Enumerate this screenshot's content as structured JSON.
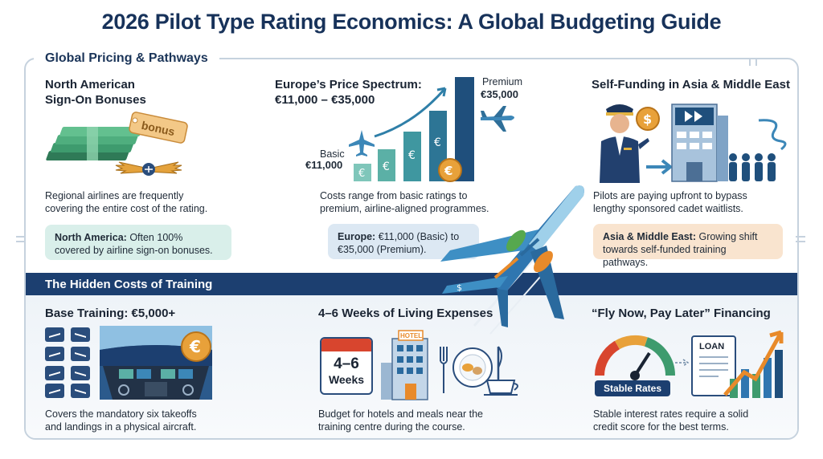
{
  "title": "2026 Pilot Type Rating Economics: A Global Budgeting Guide",
  "section1": {
    "label": "Global Pricing & Pathways",
    "north_america": {
      "heading_line1": "North American",
      "heading_line2": "Sign-On Bonuses",
      "bonus_tag": "bonus",
      "text_line1": "Regional airlines are frequently",
      "text_line2": "covering the entire cost of the rating.",
      "note_bold": "North America:",
      "note_rest1": " Often 100%",
      "note_line2": "covered by airline sign-on bonuses."
    },
    "europe": {
      "heading_line1": "Europe’s Price Spectrum:",
      "heading_line2": "€11,000 – €35,000",
      "basic_label": "Basic",
      "basic_value": "€11,000",
      "premium_label": "Premium",
      "premium_value": "€35,000",
      "text_line1": "Costs range from basic ratings to",
      "text_line2": "premium, airline-aligned programmes.",
      "note_bold": "Europe:",
      "note_rest1": " €11,000 (Basic) to",
      "note_line2": "€35,000 (Premium)."
    },
    "asia": {
      "heading": "Self-Funding in Asia & Middle East",
      "text_line1": "Pilots are paying upfront to bypass",
      "text_line2": "lengthy sponsored cadet waitlists.",
      "note_bold": "Asia & Middle East:",
      "note_rest1": " Growing shift",
      "note_line2": "towards self-funded training pathways."
    }
  },
  "section2": {
    "label": "The Hidden Costs of Training",
    "base": {
      "heading": "Base Training: €5,000+",
      "text_line1": "Covers the mandatory six takeoffs",
      "text_line2": "and landings in a physical aircraft."
    },
    "living": {
      "heading": "4–6 Weeks of Living Expenses",
      "calendar_line1": "4–6",
      "calendar_line2": "Weeks",
      "hotel_sign": "HOTEL",
      "text_line1": "Budget for hotels and meals near the",
      "text_line2": "training centre during the course."
    },
    "financing": {
      "heading": "“Fly Now, Pay Later” Financing",
      "loan_label": "LOAN",
      "gauge_label": "Stable Rates",
      "text_line1": "Stable interest rates require a solid",
      "text_line2": "credit score for the best terms."
    }
  },
  "colors": {
    "navy": "#1c3f70",
    "teal_note": "#d9efea",
    "blue_note": "#dce8f3",
    "orange_note": "#f9e4cf",
    "money_green": "#3e9b6e",
    "accent_orange": "#e88a2a"
  },
  "icons": [
    "money-stack-icon",
    "pilot-wings-icon",
    "bar-chart-icon",
    "airplane-icon",
    "pilot-icon",
    "building-icon",
    "queue-icon",
    "jet-icon",
    "runway-icon",
    "cockpit-icon",
    "euro-coin-icon",
    "calendar-icon",
    "hotel-icon",
    "meal-icon",
    "gauge-icon",
    "loan-document-icon",
    "growth-chart-icon"
  ]
}
